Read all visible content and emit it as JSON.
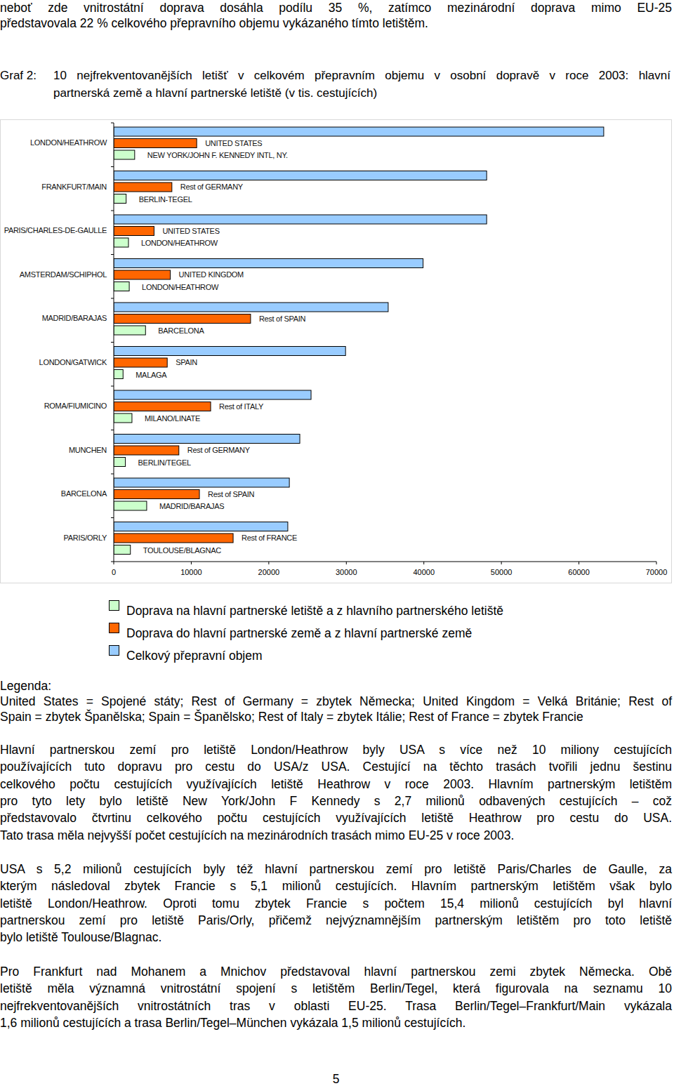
{
  "top_text": {
    "lines": [
      "neboť zde vnitrostátní doprava dosáhla podílu 35 %, zatímco mezinárodní doprava mimo EU-25",
      "představovala 22 % celkového přepravního objemu vykázaného tímto letištěm."
    ]
  },
  "figure": {
    "label": "Graf 2:",
    "caption_lines": [
      "10 nejfrekventovanějších letišť v celkovém přepravním objemu v osobní dopravě v roce 2003: hlavní",
      "partnerská země a hlavní partnerské letiště (v tis. cestujících)"
    ]
  },
  "chart_data": {
    "type": "bar",
    "orientation": "horizontal",
    "legend": "bottom",
    "categories": [
      "LONDON/HEATHROW",
      "FRANKFURT/MAIN",
      "PARIS/CHARLES-DE-GAULLE",
      "AMSTERDAM/SCHIPHOL",
      "MADRID/BARAJAS",
      "LONDON/GATWICK",
      "ROMA/FIUMICINO",
      "MUNCHEN",
      "BARCELONA",
      "PARIS/ORLY"
    ],
    "partner_country": [
      "UNITED STATES",
      "Rest of GERMANY",
      "UNITED STATES",
      "UNITED KINGDOM",
      "Rest of SPAIN",
      "SPAIN",
      "Rest of ITALY",
      "Rest of GERMANY",
      "Rest of SPAIN",
      "Rest of FRANCE"
    ],
    "partner_airport": [
      "NEW YORK/JOHN F. KENNEDY INTL, NY.",
      "BERLIN-TEGEL",
      "LONDON/HEATHROW",
      "LONDON/HEATHROW",
      "BARCELONA",
      "MALAGA",
      "MILANO/LINATE",
      "BERLIN/TEGEL",
      "MADRID/BARAJAS",
      "TOULOUSE/BLAGNAC"
    ],
    "series": [
      {
        "name": "Doprava na hlavní partnerské letiště a z hlavního partnerského letiště",
        "color": "#ccffcc",
        "values": [
          2700,
          1600,
          1900,
          2000,
          4100,
          1200,
          2350,
          1500,
          4250,
          2150
        ]
      },
      {
        "name": "Doprava do hlavní partnerské země a z hlavní partnerské země",
        "color": "#ff6600",
        "values": [
          10700,
          7500,
          5200,
          7300,
          17650,
          6900,
          12500,
          8400,
          11050,
          15400
        ]
      },
      {
        "name": "Celkový přepravní objem",
        "color": "#99ccff",
        "values": [
          63200,
          48100,
          48100,
          39900,
          35400,
          29900,
          25450,
          24000,
          22650,
          22450
        ]
      }
    ],
    "xlim": [
      0,
      70000
    ],
    "xticks": [
      0,
      10000,
      20000,
      30000,
      40000,
      50000,
      60000,
      70000
    ]
  },
  "legend_note": {
    "heading": "Legenda:",
    "lines": [
      "United States = Spojené státy; Rest of Germany = zbytek Německa; United Kingdom = Velká Británie; Rest of",
      "Spain = zbytek Španělska; Spain = Španělsko; Rest of Italy = zbytek Itálie; Rest of France = zbytek Francie"
    ]
  },
  "paragraphs": [
    [
      "Hlavní partnerskou zemí pro letiště London/Heathrow byly USA s více než 10 miliony cestujících",
      "používajících tuto dopravu pro cestu do USA/z USA. Cestující na těchto trasách tvořili jednu šestinu",
      "celkového počtu cestujících využívajících letiště Heathrow v roce 2003. Hlavním partnerským letištěm",
      "pro tyto lety bylo letiště New York/John F Kennedy s 2,7 milionů odbavených cestujících – což",
      "představovalo čtvrtinu celkového počtu cestujících využívajících letiště Heathrow pro cestu do USA.",
      "Tato trasa měla nejvyšší počet cestujících na mezinárodních trasách mimo EU-25 v roce 2003."
    ],
    [
      "USA s 5,2 milionů cestujících byly též hlavní partnerskou zemí pro letiště Paris/Charles de Gaulle, za",
      "kterým následoval zbytek Francie s 5,1 milionů cestujících. Hlavním partnerským letištěm však bylo",
      "letiště London/Heathrow. Oproti tomu zbytek Francie s počtem 15,4 milionů cestujících byl hlavní",
      "partnerskou zemí pro letiště Paris/Orly, přičemž nejvýznamnějším partnerským letištěm pro toto letiště",
      "bylo letiště Toulouse/Blagnac."
    ],
    [
      "Pro Frankfurt nad Mohanem a Mnichov představoval hlavní partnerskou zemi zbytek Německa. Obě",
      "letiště měla významná vnitrostátní spojení s letištěm Berlin/Tegel, která figurovala na seznamu 10",
      "nejfrekventovanějších vnitrostátních tras v oblasti EU-25. Trasa Berlin/Tegel–Frankfurt/Main vykázala",
      "1,6 milionů cestujících a trasa Berlin/Tegel–München vykázala 1,5 milionů cestujících."
    ]
  ],
  "page_number": "5"
}
